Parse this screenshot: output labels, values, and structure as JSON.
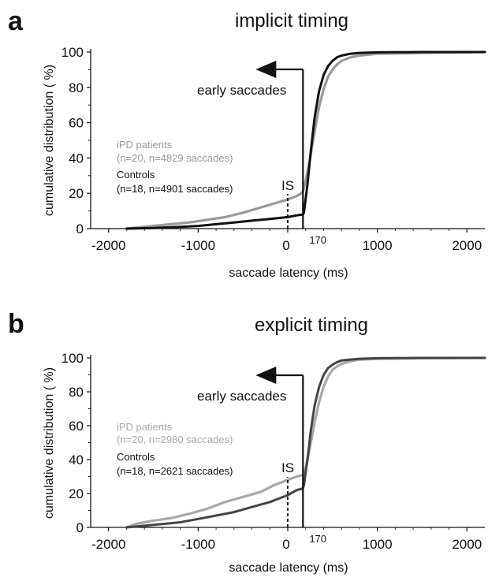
{
  "chart_data": [
    {
      "type": "line",
      "panel_letter": "a",
      "title": "implicit timing",
      "xlabel": "saccade latency (ms)",
      "ylabel": "cumulative distribution ( %)",
      "xlim": [
        -2200,
        2200
      ],
      "ylim": [
        0,
        100
      ],
      "x_ticks": [
        -2000,
        -1000,
        0,
        1000,
        2000
      ],
      "x_tick_labels": [
        "-2000",
        "-1000",
        "0",
        "1000",
        "2000"
      ],
      "y_ticks": [
        0,
        20,
        40,
        60,
        80,
        100
      ],
      "y_tick_labels": [
        "0",
        "20",
        "40",
        "60",
        "80",
        "100"
      ],
      "special_tick": {
        "x": 170,
        "label": "170"
      },
      "annotations": {
        "arrow_label": "early saccades",
        "is_label": "IS",
        "is_x": 0
      },
      "series": [
        {
          "name": "iPD patients",
          "legend_detail": "(n=20, n=4829 saccades)",
          "color": "#999999",
          "x": [
            -1800,
            -1700,
            -1500,
            -1300,
            -1100,
            -900,
            -700,
            -500,
            -300,
            -100,
            0,
            100,
            150,
            170,
            200,
            250,
            300,
            350,
            400,
            450,
            500,
            550,
            600,
            700,
            800,
            1000,
            1500,
            2200
          ],
          "y": [
            0,
            0.5,
            1.5,
            2.5,
            3.5,
            5,
            6.5,
            9,
            12,
            15,
            16.5,
            18.5,
            20,
            21,
            27,
            40,
            55,
            69,
            79,
            86,
            90,
            93,
            95,
            97,
            98,
            99,
            99.5,
            100
          ]
        },
        {
          "name": "Controls",
          "legend_detail": "(n=18, n=4901 saccades)",
          "color": "#111111",
          "x": [
            -1800,
            -1500,
            -1200,
            -1000,
            -800,
            -600,
            -400,
            -200,
            0,
            100,
            170,
            180,
            220,
            260,
            300,
            350,
            400,
            450,
            500,
            550,
            600,
            700,
            800,
            1000,
            1500,
            2200
          ],
          "y": [
            0,
            0.3,
            1,
            1.5,
            2.5,
            3.5,
            4.5,
            5.5,
            6.5,
            7.5,
            8,
            9,
            25,
            45,
            63,
            78,
            87,
            92,
            95,
            97,
            98,
            99,
            99.5,
            99.8,
            100,
            100
          ]
        }
      ]
    },
    {
      "type": "line",
      "panel_letter": "b",
      "title": "explicit timing",
      "xlabel": "saccade latency (ms)",
      "ylabel": "cumulative distribution ( %)",
      "xlim": [
        -2200,
        2200
      ],
      "ylim": [
        0,
        100
      ],
      "x_ticks": [
        -2000,
        -1000,
        0,
        1000,
        2000
      ],
      "x_tick_labels": [
        "-2000",
        "-1000",
        "0",
        "1000",
        "2000"
      ],
      "y_ticks": [
        0,
        20,
        40,
        60,
        80,
        100
      ],
      "y_tick_labels": [
        "0",
        "20",
        "40",
        "60",
        "80",
        "100"
      ],
      "special_tick": {
        "x": 170,
        "label": "170"
      },
      "annotations": {
        "arrow_label": "early saccades",
        "is_label": "IS",
        "is_x": 0
      },
      "series": [
        {
          "name": "iPD patients",
          "legend_detail": "(n=20, n=2980 saccades)",
          "color": "#a8a8a8",
          "x": [
            -1800,
            -1700,
            -1500,
            -1300,
            -1100,
            -900,
            -700,
            -500,
            -300,
            -150,
            0,
            100,
            170,
            200,
            250,
            300,
            350,
            400,
            450,
            500,
            550,
            600,
            700,
            800,
            1000,
            1500,
            2200
          ],
          "y": [
            0,
            2,
            4,
            5.5,
            8,
            11,
            15,
            18,
            21,
            25,
            28,
            30,
            31,
            35,
            48,
            62,
            74,
            83,
            89,
            93,
            95,
            96.5,
            98,
            99,
            99.5,
            99.8,
            100
          ]
        },
        {
          "name": "Controls",
          "legend_detail": "(n=18, n=2621 saccades)",
          "color": "#444444",
          "x": [
            -1800,
            -1600,
            -1400,
            -1200,
            -1000,
            -800,
            -600,
            -400,
            -200,
            0,
            100,
            170,
            180,
            220,
            260,
            300,
            350,
            400,
            450,
            500,
            550,
            600,
            700,
            800,
            1000,
            1500,
            2200
          ],
          "y": [
            0,
            1,
            2,
            3,
            5,
            7,
            9,
            12,
            15,
            19,
            22,
            23,
            25,
            40,
            58,
            72,
            83,
            90,
            94,
            96,
            97.5,
            98.5,
            99,
            99.5,
            99.8,
            100,
            100
          ]
        }
      ]
    }
  ]
}
